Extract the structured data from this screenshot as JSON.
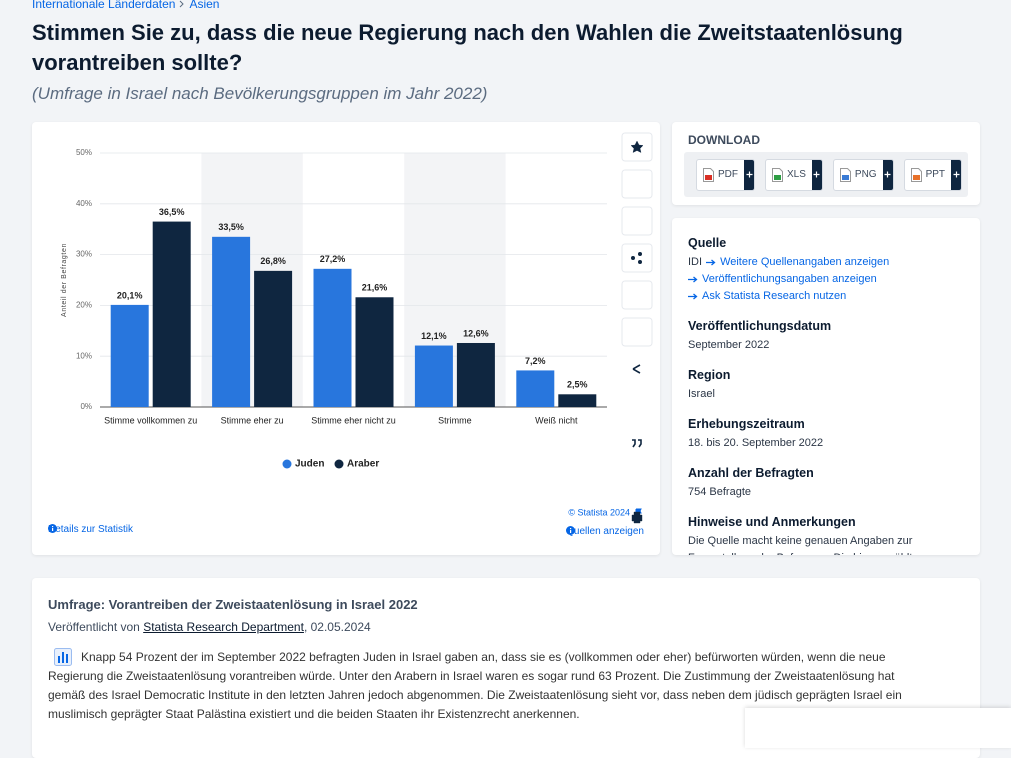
{
  "breadcrumb": [
    "Internationale Länderdaten",
    "Asien"
  ],
  "header": {
    "title": "Stimmen Sie zu, dass die neue Regierung nach den Wahlen die Zweitstaatenlösung vorantreiben sollte?",
    "subtitle": "(Umfrage in Israel nach Bevölkerungsgruppen im Jahr 2022)"
  },
  "chart_data": {
    "type": "bar",
    "y_label": "Anteil der Befragten",
    "categories": [
      "Stimme vollkommen zu",
      "Stimme eher zu",
      "Stimme eher nicht zu",
      "Strimme",
      "Weiß nicht"
    ],
    "series": [
      {
        "name": "Juden",
        "color": "#2876dd",
        "values": [
          20.1,
          33.5,
          27.2,
          12.1,
          7.2
        ],
        "value_labels": [
          "20,1%",
          "33,5%",
          "27,2%",
          "12,1%",
          "7,2%"
        ]
      },
      {
        "name": "Araber",
        "color": "#0f2640",
        "values": [
          36.5,
          26.8,
          21.6,
          12.6,
          2.5
        ],
        "value_labels": [
          "36,5%",
          "26,8%",
          "21,6%",
          "12,6%",
          "2,5%"
        ]
      }
    ],
    "ylim": [
      0,
      50
    ],
    "yticks": [
      {
        "value": 0,
        "label": "0%"
      },
      {
        "value": 10,
        "label": "10%"
      },
      {
        "value": 20,
        "label": "20%"
      },
      {
        "value": 30,
        "label": "30%"
      },
      {
        "value": 40,
        "label": "40%"
      },
      {
        "value": 50,
        "label": "50%"
      }
    ],
    "grid": true,
    "legend": "bottom",
    "credit": "© Statista 2024"
  },
  "chart_links": {
    "details": "Details zur Statistik",
    "sources": "Quellen anzeigen"
  },
  "download": {
    "title": "DOWNLOAD",
    "formats": [
      "PDF",
      "XLS",
      "PNG",
      "PPT"
    ]
  },
  "info": {
    "source_title": "Quelle",
    "source": "IDI",
    "source_links": [
      "Weitere Quellenangaben anzeigen",
      "Veröffentlichungsangaben anzeigen",
      "Ask Statista Research nutzen"
    ],
    "items": [
      {
        "label": "Veröffentlichungsdatum",
        "value": "September 2022"
      },
      {
        "label": "Region",
        "value": "Israel"
      },
      {
        "label": "Erhebungszeitraum",
        "value": "18. bis 20. September 2022"
      },
      {
        "label": "Anzahl der Befragten",
        "value": "754 Befragte"
      },
      {
        "label": "Hinweise und Anmerkungen",
        "value": "Die Quelle macht keine genauen Angaben zur Fragestellung der Befragung. Die hier gewählten"
      }
    ]
  },
  "article": {
    "title": "Umfrage: Vorantreiben der Zweistaatenlösung in Israel 2022",
    "byline_prefix": "Veröffentlicht von",
    "author": "Statista Research Department",
    "byline_suffix": ", 02.05.2024",
    "text": "Knapp 54 Prozent der im September 2022 befragten Juden in Israel gaben an, dass sie es (vollkommen oder eher) befürworten würden, wenn die neue Regierung die Zweistaatenlösung vorantreiben würde. Unter den Arabern in Israel waren es sogar rund 63 Prozent. Die Zustimmung der Zweistaatenlösung hat gemäß des Israel Democratic Institute in den letzten Jahren jedoch abgenommen. Die Zweistaatenlösung sieht vor, dass neben dem jüdisch geprägten Israel ein muslimisch geprägter Staat Palästina existiert und die beiden Staaten ihr Existenzrecht anerkennen."
  }
}
